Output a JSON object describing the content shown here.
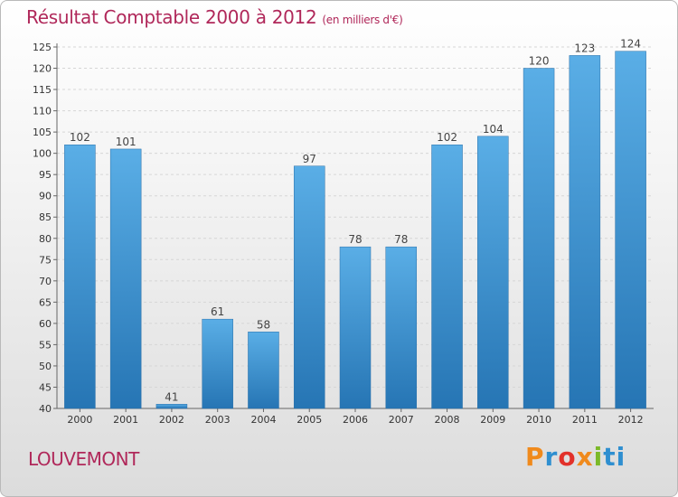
{
  "header": {
    "title": "Résultat Comptable 2000 à 2012",
    "subtitle": "(en milliers d'€)"
  },
  "footer": {
    "commune": "LOUVEMONT",
    "logo_text": "Proxiti"
  },
  "colors": {
    "title": "#b0285a",
    "bar_light": "#5aaee6",
    "bar_dark": "#2675b4"
  },
  "chart_data": {
    "type": "bar",
    "title": "Résultat Comptable 2000 à 2012",
    "subtitle": "(en milliers d'€)",
    "xlabel": "",
    "ylabel": "",
    "categories": [
      "2000",
      "2001",
      "2002",
      "2003",
      "2004",
      "2005",
      "2006",
      "2007",
      "2008",
      "2009",
      "2010",
      "2011",
      "2012"
    ],
    "values": [
      102,
      101,
      41,
      61,
      58,
      97,
      78,
      78,
      102,
      104,
      120,
      123,
      124
    ],
    "ylim": [
      40,
      125
    ],
    "yticks": [
      40,
      45,
      50,
      55,
      60,
      65,
      70,
      75,
      80,
      85,
      90,
      95,
      100,
      105,
      110,
      115,
      120,
      125
    ],
    "grid": true,
    "legend": "none"
  }
}
